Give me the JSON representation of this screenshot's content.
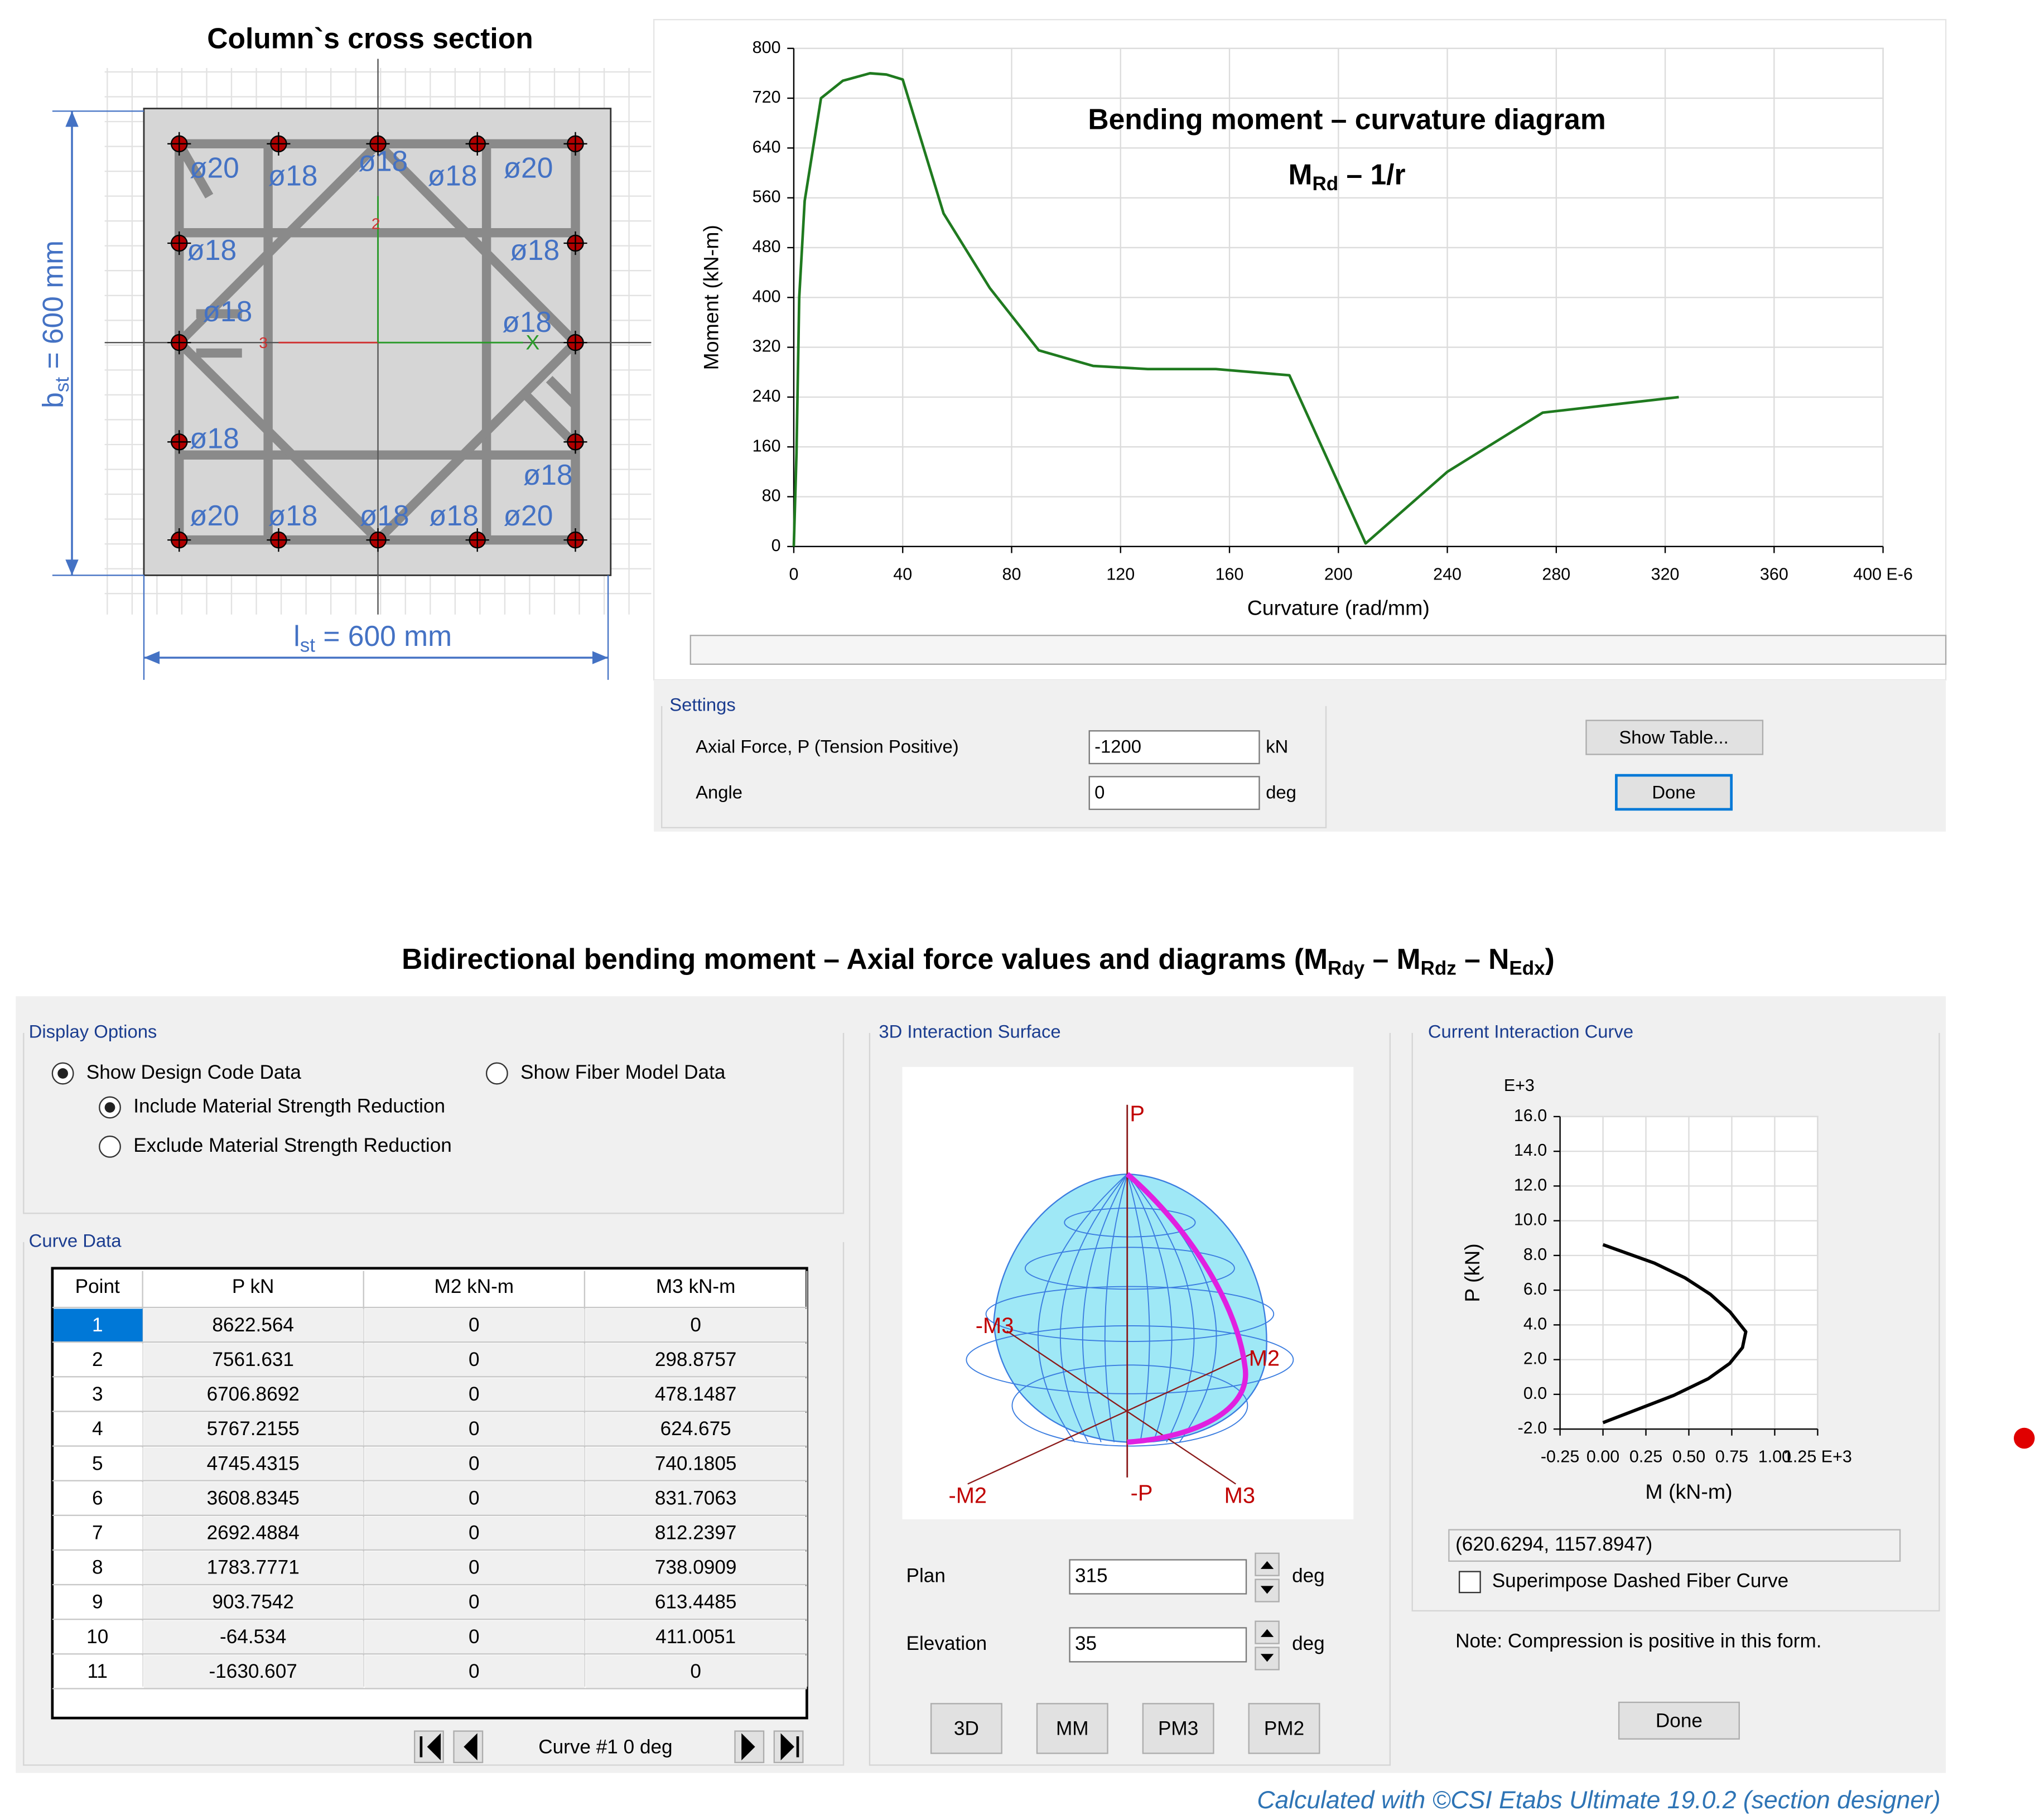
{
  "cross_section": {
    "title": "Column`s cross section",
    "height_dim": [
      "b",
      "st",
      " = 600 mm"
    ],
    "width_dim": [
      "l",
      "st",
      " = 600 mm"
    ],
    "bar_labels": [
      "ø20",
      "ø18",
      "ø18",
      "ø18",
      "ø20",
      "ø18",
      "ø18",
      "ø18",
      "ø18",
      "ø18",
      "ø18",
      "ø20",
      "ø18",
      "ø18",
      "ø18",
      "ø20"
    ],
    "axis_labels": [
      "3",
      "X",
      "2"
    ]
  },
  "chart_data": [
    {
      "type": "line",
      "title": "Bending moment – curvature diagram",
      "subtitle": [
        "M",
        "Rd",
        " – 1/r"
      ],
      "x_label": "Curvature (rad/mm)",
      "y_label": "Moment (kN-m)",
      "x": [
        0,
        1,
        2,
        4,
        10,
        18,
        28,
        34,
        40,
        55,
        72,
        90,
        110,
        130,
        155,
        182,
        210,
        240,
        275,
        325
      ],
      "values": [
        0,
        150,
        400,
        555,
        720,
        748,
        760,
        758,
        750,
        535,
        415,
        315,
        290,
        285,
        285,
        275,
        5,
        120,
        215,
        240
      ],
      "color": "#1f7a1f",
      "xlim": [
        0,
        400
      ],
      "xticks": [
        0,
        40,
        80,
        120,
        160,
        200,
        240,
        280,
        320,
        360,
        {
          "value": 400,
          "label": "400 E-6"
        }
      ],
      "ylim": [
        0,
        800
      ],
      "yticks": [
        0,
        80,
        160,
        240,
        320,
        400,
        480,
        560,
        640,
        720,
        800
      ],
      "grid": true
    },
    {
      "type": "line",
      "y_multiplier": "E+3",
      "x_label": "M (kN-m)",
      "y_label": "P (kN)",
      "x": [
        0,
        0.2988757,
        0.4781487,
        0.624675,
        0.7401805,
        0.8317063,
        0.8122397,
        0.7380909,
        0.6134485,
        0.4110051,
        0
      ],
      "values": [
        8.622564,
        7.561631,
        6.7068692,
        5.7672155,
        4.7454315,
        3.6088345,
        2.6924884,
        1.7837771,
        0.9037542,
        -0.064534,
        -1.630607
      ],
      "color": "#000000",
      "xlim": [
        -0.25,
        1.25
      ],
      "xticks": [
        -0.25,
        {
          "value": 0,
          "label": "0.00"
        },
        0.25,
        {
          "value": 0.5,
          "label": "0.50"
        },
        0.75,
        {
          "value": 1,
          "label": "1.00"
        },
        {
          "value": 1.25,
          "label": "1.25 E+3"
        }
      ],
      "ylim": [
        -2,
        16
      ],
      "yticks": [
        {
          "value": -2,
          "label": "-2.0"
        },
        {
          "value": 0,
          "label": "0.0"
        },
        {
          "value": 2,
          "label": "2.0"
        },
        {
          "value": 4,
          "label": "4.0"
        },
        {
          "value": 6,
          "label": "6.0"
        },
        {
          "value": 8,
          "label": "8.0"
        },
        {
          "value": 10,
          "label": "10.0"
        },
        {
          "value": 12,
          "label": "12.0"
        },
        {
          "value": 14,
          "label": "14.0"
        },
        {
          "value": 16,
          "label": "16.0"
        }
      ],
      "grid": true
    }
  ],
  "settings": {
    "title": "Settings",
    "axial_force_label": "Axial Force, P  (Tension Positive)",
    "axial_force": "-1200",
    "axial_force_unit": "kN",
    "angle_label": "Angle",
    "angle": "0",
    "angle_unit": "deg",
    "show_table_button": "Show Table...",
    "done_button": "Done"
  },
  "interaction": {
    "heading": [
      "Bidirectional bending moment – Axial force values and diagrams (M",
      "Rdy",
      " – M",
      "Rdz",
      " – N",
      "Edx",
      ")"
    ],
    "display_options": {
      "title": "Display Options",
      "design_code": "Show Design Code Data",
      "include_reduction": "Include Material Strength Reduction",
      "exclude_reduction": "Exclude Material Strength Reduction",
      "fiber_model": "Show Fiber Model Data"
    },
    "curve_data": {
      "title": "Curve Data",
      "columns": [
        "Point",
        "P kN",
        "M2 kN-m",
        "M3 kN-m"
      ],
      "rows": [
        [
          1,
          8622.564,
          0,
          0
        ],
        [
          2,
          7561.631,
          0,
          298.8757
        ],
        [
          3,
          6706.8692,
          0,
          478.1487
        ],
        [
          4,
          5767.2155,
          0,
          624.675
        ],
        [
          5,
          4745.4315,
          0,
          740.1805
        ],
        [
          6,
          3608.8345,
          0,
          831.7063
        ],
        [
          7,
          2692.4884,
          0,
          812.2397
        ],
        [
          8,
          1783.7771,
          0,
          738.0909
        ],
        [
          9,
          903.7542,
          0,
          613.4485
        ],
        [
          10,
          -64.534,
          0,
          411.0051
        ],
        [
          11,
          -1630.607,
          0,
          0
        ]
      ],
      "navigation": "Curve #1  0 deg"
    },
    "surface": {
      "title": "3D Interaction Surface",
      "axis_labels": [
        "P",
        "-M3",
        "M2",
        "-M2",
        "-P",
        "M3"
      ],
      "plan_label": "Plan",
      "plan": "315",
      "plan_unit": "deg",
      "elevation_label": "Elevation",
      "elevation": "35",
      "elevation_unit": "deg",
      "buttons": [
        "3D",
        "MM",
        "PM3",
        "PM2"
      ]
    },
    "current_curve": {
      "title": "Current Interaction Curve",
      "coordinates": "(620.6294, 1157.8947)",
      "superimpose": "Superimpose Dashed Fiber Curve",
      "note": "Note:  Compression is positive in this form.",
      "done_button": "Done"
    }
  },
  "footer": "Calculated with ©CSI Etabs Ultimate 19.0.2 (section designer)"
}
